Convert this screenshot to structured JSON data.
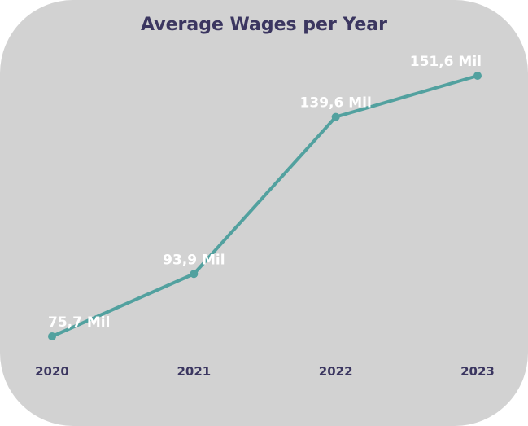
{
  "chart_data": {
    "type": "line",
    "title": "Average Wages per Year",
    "xlabel": "",
    "ylabel": "",
    "categories": [
      "2020",
      "2021",
      "2022",
      "2023"
    ],
    "series": [
      {
        "values": [
          75.7,
          93.9,
          139.6,
          151.6
        ],
        "labels": [
          "75,7 Mil",
          "93,9 Mil",
          "139,6 Mil",
          "151,6 Mil"
        ]
      }
    ],
    "ylim": [
      70,
      155
    ],
    "grid": false,
    "legend": "none",
    "colors": {
      "background": "#d2d2d2",
      "line": "#52a19f",
      "title": "#3b3660",
      "tick": "#3b3660",
      "data_label": "#ffffff"
    }
  }
}
